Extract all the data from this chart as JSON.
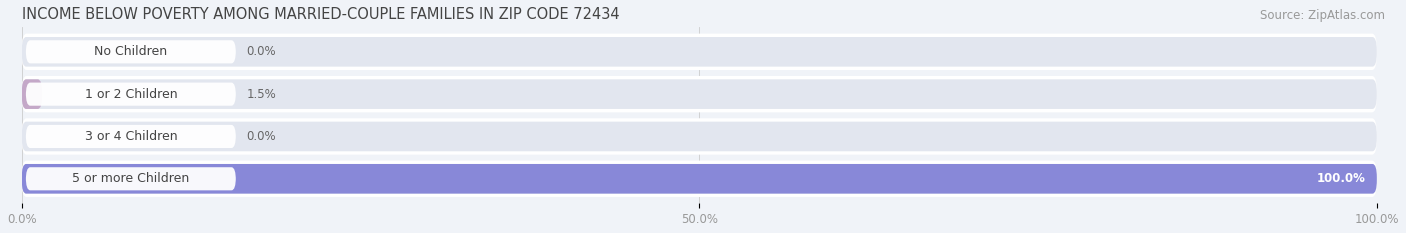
{
  "title": "INCOME BELOW POVERTY AMONG MARRIED-COUPLE FAMILIES IN ZIP CODE 72434",
  "source": "Source: ZipAtlas.com",
  "categories": [
    "No Children",
    "1 or 2 Children",
    "3 or 4 Children",
    "5 or more Children"
  ],
  "values": [
    0.0,
    1.5,
    0.0,
    100.0
  ],
  "bar_colors": [
    "#aec6e8",
    "#c4a8c8",
    "#6ecfbf",
    "#8888d8"
  ],
  "xlim": [
    0,
    100
  ],
  "xticks": [
    0.0,
    50.0,
    100.0
  ],
  "xtick_labels": [
    "0.0%",
    "50.0%",
    "100.0%"
  ],
  "page_bg_color": "#f0f3f8",
  "row_bg_color": "#ffffff",
  "bar_track_color": "#e2e6ef",
  "title_fontsize": 10.5,
  "source_fontsize": 8.5,
  "label_fontsize": 9,
  "value_fontsize": 8.5,
  "tick_fontsize": 8.5
}
